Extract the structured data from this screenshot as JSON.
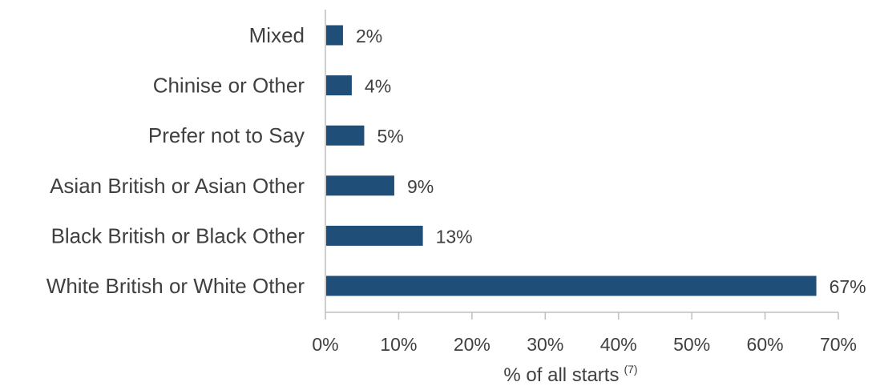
{
  "chart_data": {
    "type": "bar",
    "orientation": "horizontal",
    "title": "",
    "xlabel": "% of all starts",
    "xlabel_footnote": "(7)",
    "ylabel": "",
    "categories": [
      "Mixed",
      "Chinise or Other",
      "Prefer not to Say",
      "Asian British or Asian Other",
      "Black British or Black Other",
      "White British or White Other"
    ],
    "values": [
      2,
      4,
      5,
      9,
      13,
      67
    ],
    "bar_value_labels": [
      "2%",
      "4%",
      "5%",
      "9%",
      "13%",
      "67%"
    ],
    "bar_plot_values": [
      2.4,
      3.6,
      5.3,
      9.4,
      13.3,
      67.0
    ],
    "xlim": [
      0,
      70
    ],
    "xticks": [
      0,
      10,
      20,
      30,
      40,
      50,
      60,
      70
    ],
    "xtick_labels": [
      "0%",
      "10%",
      "20%",
      "30%",
      "40%",
      "50%",
      "60%",
      "70%"
    ],
    "grid": false,
    "legend": "none",
    "colors": {
      "bar": "#1F4E79",
      "axis": "#BFBFBF",
      "text": "#404040"
    }
  }
}
